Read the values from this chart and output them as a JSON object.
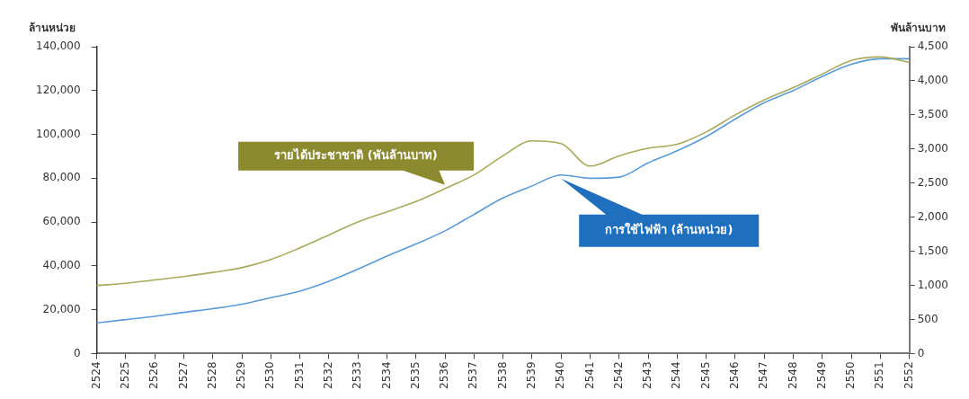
{
  "chart_data": {
    "type": "line",
    "categories": [
      "2524",
      "2525",
      "2526",
      "2527",
      "2528",
      "2529",
      "2530",
      "2531",
      "2532",
      "2533",
      "2534",
      "2535",
      "2536",
      "2537",
      "2538",
      "2539",
      "2540",
      "2541",
      "2542",
      "2543",
      "2544",
      "2545",
      "2546",
      "2547",
      "2548",
      "2549",
      "2550",
      "2551",
      "2552"
    ],
    "series": [
      {
        "name": "รายได้ประชาชาติ (พันล้านบาท)",
        "color": "#a9a95c",
        "axis": "y2",
        "values": [
          1000,
          1030,
          1080,
          1130,
          1190,
          1260,
          1380,
          1550,
          1740,
          1930,
          2080,
          2230,
          2420,
          2620,
          2900,
          3120,
          3080,
          2750,
          2900,
          3010,
          3070,
          3250,
          3500,
          3720,
          3900,
          4100,
          4300,
          4350,
          4270
        ]
      },
      {
        "name": "การใช้ไฟฟ้า (ล้านหน่วย)",
        "color": "#5b9bd5",
        "values": [
          14000,
          15500,
          17000,
          18800,
          20500,
          22500,
          25500,
          28500,
          33000,
          38500,
          44500,
          50000,
          56000,
          63500,
          71000,
          76500,
          81500,
          80000,
          80500,
          87000,
          92500,
          99000,
          107000,
          114500,
          120000,
          126500,
          132000,
          134500,
          134500
        ]
      }
    ],
    "ylabel": "ล้านหน่วย",
    "y2label": "พันล้านบาท",
    "ylim": [
      0,
      140000
    ],
    "yticks": [
      0,
      {
        "value": 20000,
        "label": "20,000"
      },
      {
        "value": 40000,
        "label": "40,000"
      },
      {
        "value": 60000,
        "label": "60,000"
      },
      {
        "value": 80000,
        "label": "80,000"
      },
      {
        "value": 100000,
        "label": "100,000"
      },
      {
        "value": 120000,
        "label": "120,000"
      },
      {
        "value": 140000,
        "label": "140,000"
      }
    ],
    "y2lim": [
      0,
      4500
    ],
    "y2ticks": [
      0,
      500,
      {
        "value": 1000,
        "label": "1,000"
      },
      {
        "value": 1500,
        "label": "1,500"
      },
      {
        "value": 2000,
        "label": "2,000"
      },
      {
        "value": 2500,
        "label": "2,500"
      },
      {
        "value": 3000,
        "label": "3,000"
      },
      {
        "value": 3500,
        "label": "3,500"
      },
      {
        "value": 4000,
        "label": "4,000"
      },
      {
        "value": 4500,
        "label": "4,500"
      }
    ],
    "grid": false,
    "legend": false,
    "marker": "none",
    "line_style": "solid"
  }
}
